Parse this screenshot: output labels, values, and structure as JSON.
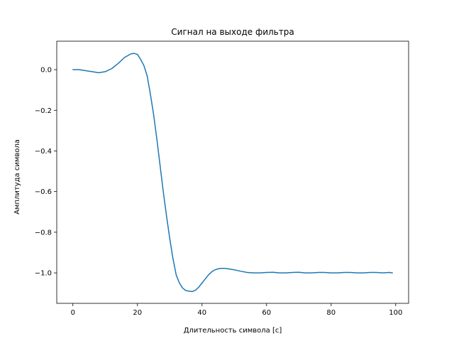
{
  "chart_data": {
    "type": "line",
    "title": "Сигнал на выходе фильтра",
    "xlabel": "Длительность символа [c]",
    "ylabel": "Амплитуда символа",
    "xlim": [
      -5,
      104
    ],
    "ylim": [
      -1.15,
      0.14
    ],
    "xticks": [
      0,
      20,
      40,
      60,
      80,
      100
    ],
    "xtick_labels": [
      "0",
      "20",
      "40",
      "60",
      "80",
      "100"
    ],
    "yticks": [
      0.0,
      -0.2,
      -0.4,
      -0.6,
      -0.8,
      -1.0
    ],
    "ytick_labels": [
      "0.0",
      "−0.2",
      "−0.4",
      "−0.6",
      "−0.8",
      "−1.0"
    ],
    "grid": false,
    "series": [
      {
        "color": "#1f77b4",
        "x": [
          0,
          2,
          4,
          6,
          8,
          10,
          12,
          14,
          16,
          18,
          19,
          20,
          21,
          22,
          23,
          24,
          25,
          26,
          27,
          28,
          29,
          30,
          31,
          32,
          33,
          34,
          35,
          36,
          37,
          38,
          39,
          40,
          41,
          42,
          43,
          44,
          45,
          46,
          47,
          48,
          50,
          52,
          54,
          56,
          58,
          60,
          62,
          64,
          66,
          68,
          70,
          72,
          74,
          76,
          78,
          80,
          82,
          84,
          86,
          88,
          90,
          92,
          94,
          96,
          98,
          99
        ],
        "y": [
          0.0,
          0.0,
          -0.005,
          -0.01,
          -0.015,
          -0.01,
          0.005,
          0.03,
          0.06,
          0.078,
          0.08,
          0.075,
          0.05,
          0.02,
          -0.03,
          -0.12,
          -0.22,
          -0.34,
          -0.47,
          -0.6,
          -0.72,
          -0.83,
          -0.93,
          -1.01,
          -1.05,
          -1.075,
          -1.087,
          -1.09,
          -1.092,
          -1.085,
          -1.07,
          -1.05,
          -1.03,
          -1.01,
          -0.995,
          -0.985,
          -0.98,
          -0.978,
          -0.978,
          -0.98,
          -0.985,
          -0.992,
          -0.998,
          -1.0,
          -1.0,
          -0.998,
          -0.997,
          -1.0,
          -1.0,
          -0.998,
          -0.997,
          -1.0,
          -1.0,
          -0.998,
          -0.998,
          -1.0,
          -1.0,
          -0.998,
          -0.998,
          -1.0,
          -1.0,
          -0.998,
          -0.998,
          -1.0,
          -0.998,
          -1.0
        ]
      }
    ]
  }
}
